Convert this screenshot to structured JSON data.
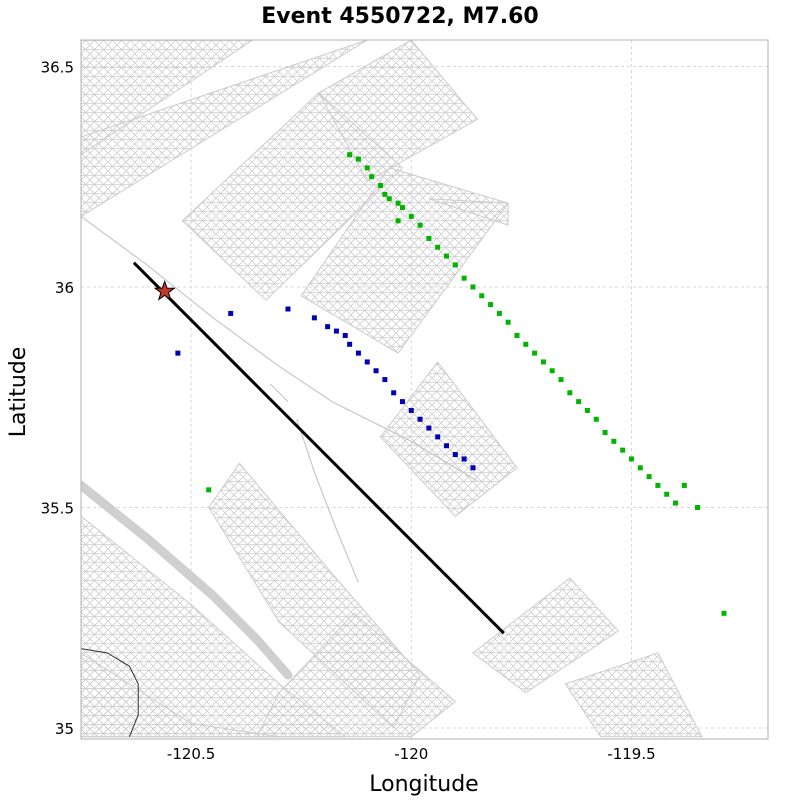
{
  "chart_data": {
    "type": "scatter",
    "title": "Event 4550722, M7.60",
    "xlabel": "Longitude",
    "ylabel": "Latitude",
    "xlim": [
      -120.75,
      -119.19
    ],
    "ylim": [
      34.975,
      36.56
    ],
    "x_ticks": [
      -120.5,
      -120,
      -119.5
    ],
    "y_ticks": [
      35,
      35.5,
      36,
      36.5
    ],
    "x_tick_labels": [
      "-120.5",
      "-120",
      "-119.5"
    ],
    "y_tick_labels": [
      "35",
      "35.5",
      "36",
      "36.5"
    ],
    "grid": true,
    "colors": {
      "fault_mesh": "#cccccc",
      "rupture": "#000000",
      "epicenter": "#c0392b",
      "station_set_1": "#0000b4",
      "station_set_2": "#00b400",
      "trace": "#c8c8c8"
    },
    "rupture_trace": {
      "x": [
        -120.63,
        -119.79
      ],
      "y": [
        36.055,
        35.215
      ]
    },
    "epicenter": {
      "x": -120.56,
      "y": 35.99,
      "marker": "star"
    },
    "fault_patches": [
      {
        "corners": [
          [
            -120.75,
            36.3
          ],
          [
            -120.36,
            36.56
          ],
          [
            -120.75,
            36.56
          ]
        ]
      },
      {
        "corners": [
          [
            -120.75,
            36.16
          ],
          [
            -120.1,
            36.56
          ],
          [
            -120.1,
            36.56
          ],
          [
            -120.75,
            36.34
          ]
        ]
      },
      {
        "corners": [
          [
            -120.52,
            36.15
          ],
          [
            -120.21,
            36.44
          ],
          [
            -120.02,
            36.27
          ],
          [
            -120.33,
            35.97
          ]
        ]
      },
      {
        "corners": [
          [
            -120.21,
            36.44
          ],
          [
            -120.0,
            36.56
          ],
          [
            -119.85,
            36.38
          ],
          [
            -120.1,
            36.24
          ]
        ]
      },
      {
        "corners": [
          [
            -120.25,
            35.98
          ],
          [
            -120.05,
            36.27
          ],
          [
            -119.78,
            36.19
          ],
          [
            -120.03,
            35.85
          ]
        ]
      },
      {
        "corners": [
          [
            -119.96,
            36.2
          ],
          [
            -119.78,
            36.19
          ],
          [
            -119.78,
            36.14
          ]
        ]
      },
      {
        "corners": [
          [
            -120.07,
            35.66
          ],
          [
            -119.94,
            35.83
          ],
          [
            -119.76,
            35.59
          ],
          [
            -119.9,
            35.48
          ]
        ]
      },
      {
        "corners": [
          [
            -120.75,
            35.48
          ],
          [
            -120.5,
            35.28
          ],
          [
            -120.3,
            35.1
          ],
          [
            -120.15,
            34.98
          ],
          [
            -120.75,
            34.98
          ]
        ]
      },
      {
        "corners": [
          [
            -120.75,
            35.17
          ],
          [
            -120.5,
            35.01
          ],
          [
            -120.3,
            34.98
          ],
          [
            -120.75,
            34.98
          ]
        ]
      },
      {
        "corners": [
          [
            -120.46,
            35.5
          ],
          [
            -120.39,
            35.6
          ],
          [
            -120.18,
            35.35
          ],
          [
            -119.98,
            35.12
          ],
          [
            -120.04,
            35.0
          ],
          [
            -120.3,
            35.24
          ]
        ]
      },
      {
        "corners": [
          [
            -120.3,
            35.08
          ],
          [
            -120.13,
            35.26
          ],
          [
            -119.9,
            35.06
          ],
          [
            -120.0,
            34.98
          ],
          [
            -120.35,
            34.98
          ]
        ]
      },
      {
        "corners": [
          [
            -119.86,
            35.17
          ],
          [
            -119.64,
            35.34
          ],
          [
            -119.53,
            35.22
          ],
          [
            -119.74,
            35.08
          ]
        ]
      },
      {
        "corners": [
          [
            -119.65,
            35.1
          ],
          [
            -119.44,
            35.17
          ],
          [
            -119.34,
            34.98
          ],
          [
            -119.57,
            34.98
          ]
        ]
      }
    ],
    "traces": [
      {
        "x": [
          -120.75,
          -120.6,
          -120.45,
          -120.3,
          -120.18,
          -120.0,
          -119.85
        ],
        "y": [
          36.16,
          36.05,
          35.93,
          35.82,
          35.74,
          35.65,
          35.56
        ]
      },
      {
        "x": [
          -120.26,
          -120.22,
          -120.17,
          -120.12
        ],
        "y": [
          35.7,
          35.58,
          35.45,
          35.33
        ]
      },
      {
        "x": [
          -120.75,
          -120.6,
          -120.45,
          -120.35,
          -120.28
        ],
        "y": [
          35.55,
          35.43,
          35.3,
          35.2,
          35.12
        ]
      },
      {
        "x": [
          -120.32,
          -120.28
        ],
        "y": [
          35.78,
          35.74
        ]
      }
    ],
    "coast": {
      "x": [
        -120.75,
        -120.69,
        -120.64,
        -120.62,
        -120.62,
        -120.64
      ],
      "y": [
        35.18,
        35.17,
        35.14,
        35.1,
        35.03,
        34.98
      ]
    },
    "series": [
      {
        "x": [
          -120.53,
          -120.41,
          -120.28,
          -120.22,
          -120.19,
          -120.17,
          -120.15,
          -120.14,
          -120.12,
          -120.1,
          -120.08,
          -120.06,
          -120.04,
          -120.02,
          -120.0,
          -119.98,
          -119.96,
          -119.94,
          -119.92,
          -119.9,
          -119.88,
          -119.86
        ],
        "y": [
          35.85,
          35.94,
          35.95,
          35.93,
          35.91,
          35.9,
          35.89,
          35.87,
          35.85,
          35.83,
          35.81,
          35.79,
          35.76,
          35.74,
          35.72,
          35.7,
          35.68,
          35.66,
          35.64,
          35.62,
          35.61,
          35.59
        ]
      },
      {
        "x": [
          -120.14,
          -120.12,
          -120.1,
          -120.09,
          -120.07,
          -120.06,
          -120.05,
          -120.03,
          -120.02,
          -120.0,
          -119.98,
          -119.96,
          -119.94,
          -119.92,
          -119.9,
          -119.88,
          -119.86,
          -119.84,
          -119.82,
          -119.8,
          -119.78,
          -119.76,
          -119.74,
          -119.72,
          -119.7,
          -119.68,
          -119.66,
          -119.64,
          -119.62,
          -119.6,
          -119.58,
          -119.56,
          -119.54,
          -119.52,
          -119.5,
          -119.48,
          -119.46,
          -119.44,
          -119.42,
          -119.4,
          -119.38,
          -119.35,
          -119.29,
          -120.03,
          -120.46
        ],
        "y": [
          36.3,
          36.29,
          36.27,
          36.25,
          36.23,
          36.21,
          36.2,
          36.19,
          36.18,
          36.16,
          36.14,
          36.11,
          36.09,
          36.07,
          36.05,
          36.02,
          36.0,
          35.98,
          35.96,
          35.94,
          35.92,
          35.89,
          35.87,
          35.85,
          35.83,
          35.81,
          35.79,
          35.76,
          35.74,
          35.72,
          35.7,
          35.67,
          35.65,
          35.63,
          35.61,
          35.59,
          35.57,
          35.55,
          35.53,
          35.51,
          35.55,
          35.5,
          35.26,
          36.15,
          35.54
        ]
      }
    ]
  }
}
